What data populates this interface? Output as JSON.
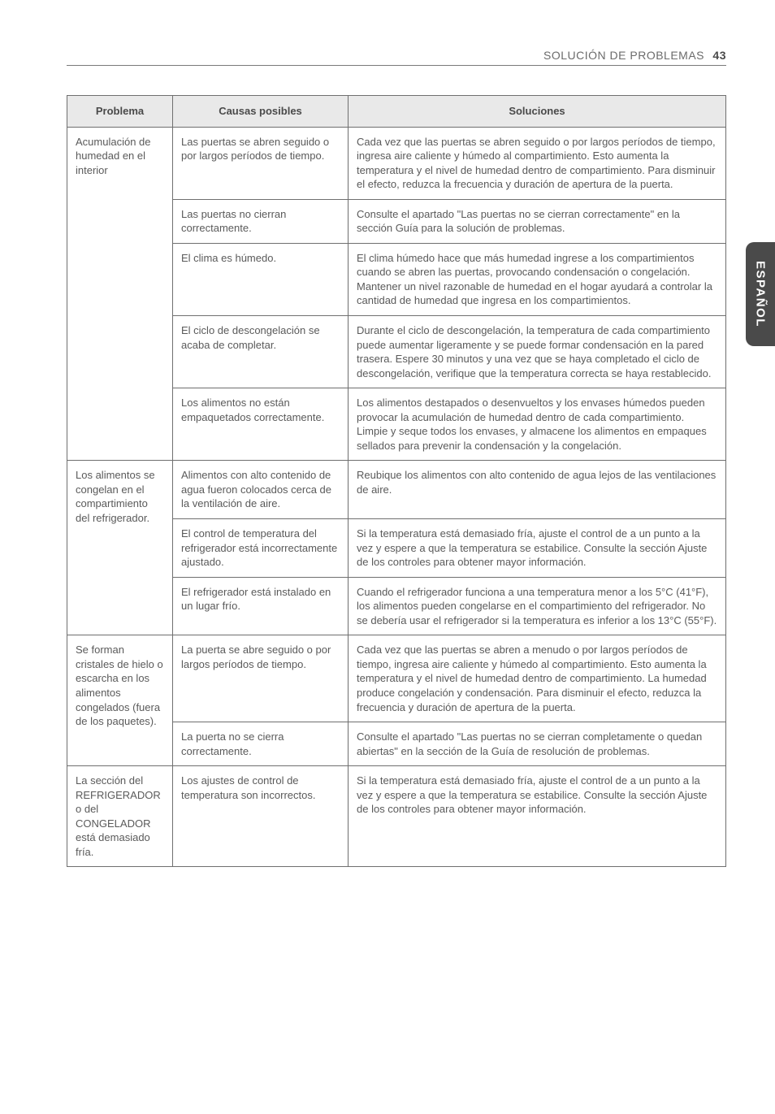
{
  "header": {
    "section_title": "SOLUCIÓN DE PROBLEMAS",
    "page_number": "43"
  },
  "side_tab": {
    "label": "ESPAÑOL"
  },
  "table": {
    "columns": [
      "Problema",
      "Causas posibles",
      "Soluciones"
    ],
    "groups": [
      {
        "problem": "Acumulación de humedad en el interior",
        "rows": [
          {
            "cause": "Las puertas se abren seguido o por largos períodos de tiempo.",
            "solution": "Cada vez que las puertas se abren seguido o por largos períodos de tiempo, ingresa aire caliente y húmedo al compartimiento. Esto aumenta la temperatura y el nivel de humedad dentro de compartimiento. Para disminuir el efecto, reduzca la frecuencia y duración de apertura de la puerta."
          },
          {
            "cause": "Las puertas no cierran correctamente.",
            "solution": "Consulte el apartado \"Las puertas no se cierran correctamente\" en la sección Guía para la solución de problemas."
          },
          {
            "cause": "El clima es húmedo.",
            "solution": "El clima húmedo hace que más humedad ingrese a los compartimientos cuando se abren las puertas, provocando condensación o congelación. Mantener un nivel razonable de humedad en el hogar ayudará a controlar la cantidad de humedad que ingresa en los compartimientos."
          },
          {
            "cause": "El ciclo de descongelación se acaba de completar.",
            "solution": "Durante el ciclo de descongelación, la temperatura de cada compartimiento puede aumentar ligeramente y se puede formar condensación en la pared trasera. Espere 30 minutos y  una vez que se haya completado el ciclo de descongelación, verifique que la temperatura correcta se haya restablecido."
          },
          {
            "cause": "Los alimentos no están empaquetados correctamente.",
            "solution": "Los alimentos  destapados o desenvueltos y los envases húmedos pueden provocar la acumulación de humedad dentro de cada compartimiento. Limpie y seque todos los envases, y almacene los alimentos en empaques sellados para prevenir la condensación y la congelación."
          }
        ]
      },
      {
        "problem": "Los alimentos se congelan en el compartimiento del refrigerador.",
        "rows": [
          {
            "cause": "Alimentos con alto contenido de agua fueron colocados cerca de la ventilación de aire.",
            "solution": "Reubique los alimentos con alto contenido de agua lejos de las ventilaciones de aire."
          },
          {
            "cause": "El control de temperatura del refrigerador  está incorrectamente ajustado.",
            "solution": "Si la temperatura está demasiado fría, ajuste el control de a un punto a la vez y espere a que la temperatura se estabilice. Consulte la sección Ajuste de los controles para obtener mayor información."
          },
          {
            "cause": "El refrigerador está instalado en un lugar frío.",
            "solution": "Cuando el refrigerador funciona a una temperatura menor a los 5°C (41°F), los alimentos pueden congelarse en el compartimiento del refrigerador. No se debería usar el refrigerador si la temperatura es inferior a los 13°C (55°F)."
          }
        ]
      },
      {
        "problem": "Se forman cristales de hielo o escarcha en los alimentos congelados (fuera de los paquetes).",
        "rows": [
          {
            "cause": "La puerta se abre seguido o por largos períodos de tiempo.",
            "solution": "Cada vez que las puertas se abren a menudo o por largos períodos de tiempo, ingresa aire caliente y húmedo al compartimiento. Esto aumenta la temperatura y el nivel de humedad dentro de compartimiento. La humedad produce congelación y condensación. Para disminuir el efecto, reduzca la frecuencia y duración de apertura de la puerta."
          },
          {
            "cause": "La puerta no se cierra correctamente.",
            "solution": "Consulte el apartado \"Las puertas no se cierran completamente o quedan abiertas\" en la sección de la Guía de resolución de problemas."
          }
        ]
      },
      {
        "problem": "La sección del REFRIGERADOR o del CONGELADOR está demasiado fría.",
        "rows": [
          {
            "cause": "Los ajustes de control de temperatura son incorrectos.",
            "solution": "Si la temperatura está demasiado fría, ajuste el control de a un punto a la vez y espere a que la temperatura se estabilice. Consulte la sección Ajuste de los controles para obtener mayor información."
          }
        ]
      }
    ]
  }
}
